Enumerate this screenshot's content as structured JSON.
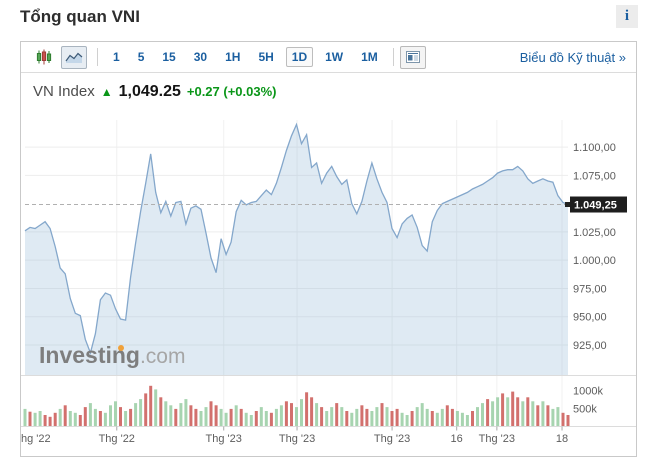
{
  "page": {
    "title": "Tổng quan VNI",
    "info_icon": "i"
  },
  "toolbar": {
    "intervals": [
      "1",
      "5",
      "15",
      "30",
      "1H",
      "5H",
      "1D",
      "1W",
      "1M"
    ],
    "selected_interval": "1D",
    "technical_link": "Biểu đồ Kỹ thuật »"
  },
  "quote": {
    "name": "VN Index",
    "arrow": "▲",
    "price": "1,049.25",
    "change": "+0.27 (+0.03%)"
  },
  "watermark": {
    "bold": "Investing",
    "light": ".com"
  },
  "colors": {
    "link_blue": "#1b5fa0",
    "up_green": "#0a9618",
    "line": "#84a7cb",
    "area_fill": "#dfeaf3",
    "volume_red": "#d2706d",
    "volume_green": "#a7d4b0",
    "badge_bg": "#1e1e1e",
    "axis_text": "#5c5c5c"
  },
  "chart_data": {
    "type": "area",
    "series_name": "VN Index",
    "current_price": 1049.25,
    "ylim": [
      898,
      1124
    ],
    "grid": true,
    "prices": [
      1026,
      1029,
      1028,
      1031,
      1034,
      1028,
      1012,
      993,
      988,
      966,
      953,
      951,
      930,
      918,
      935,
      965,
      971,
      969,
      957,
      948,
      947,
      985,
      1015,
      1043,
      1068,
      1094,
      1060,
      1042,
      1052,
      1039,
      1051,
      1052,
      1032,
      1046,
      1048,
      1045,
      1024,
      1002,
      989,
      1019,
      1005,
      1016,
      1043,
      1053,
      1049,
      1051,
      1052,
      1057,
      1062,
      1058,
      1068,
      1082,
      1097,
      1110,
      1120,
      1103,
      1111,
      1082,
      1086,
      1068,
      1077,
      1083,
      1074,
      1067,
      1071,
      1050,
      1041,
      1052,
      1070,
      1086,
      1072,
      1060,
      1051,
      1028,
      1020,
      1032,
      1037,
      1040,
      1029,
      1013,
      1008,
      1034,
      1044,
      1050,
      1052,
      1054,
      1056,
      1058,
      1060,
      1063,
      1065,
      1067,
      1070,
      1073,
      1077,
      1079,
      1080,
      1080,
      1083,
      1079,
      1072,
      1068,
      1070,
      1072,
      1070,
      1069,
      1057,
      1051,
      1049.25
    ],
    "volumes_k": [
      490,
      410,
      380,
      430,
      320,
      270,
      380,
      490,
      590,
      430,
      380,
      320,
      540,
      650,
      490,
      430,
      380,
      590,
      700,
      540,
      430,
      490,
      650,
      760,
      920,
      1130,
      1030,
      810,
      700,
      590,
      490,
      650,
      760,
      590,
      490,
      430,
      540,
      700,
      590,
      490,
      380,
      490,
      590,
      490,
      380,
      320,
      430,
      540,
      430,
      380,
      490,
      590,
      700,
      650,
      540,
      760,
      950,
      810,
      650,
      540,
      430,
      540,
      650,
      540,
      430,
      380,
      490,
      590,
      490,
      430,
      540,
      650,
      540,
      430,
      490,
      380,
      320,
      430,
      540,
      650,
      490,
      430,
      380,
      490,
      590,
      490,
      430,
      380,
      320,
      430,
      540,
      650,
      760,
      700,
      810,
      920,
      810,
      970,
      810,
      700,
      810,
      700,
      590,
      700,
      590,
      490,
      540,
      380,
      320
    ],
    "volume_colors": "grggrrrgrggrrggrgggrgrggrrgrggrggrrggrrggrgrggrggrggrrggrrgrggrgrggrrggrgrrggrgggrggrrgggrggrggrgrrgrgrgrggrr",
    "y_ticks": [
      {
        "v": 1100,
        "label": "1.100,00"
      },
      {
        "v": 1075,
        "label": "1.075,00"
      },
      {
        "v": 1025,
        "label": "1.025,00"
      },
      {
        "v": 1000,
        "label": "1.000,00"
      },
      {
        "v": 975,
        "label": "975,00"
      },
      {
        "v": 950,
        "label": "950,00"
      },
      {
        "v": 925,
        "label": "925,00"
      }
    ],
    "price_badge_label": "1.049,25",
    "volume_axis": [
      {
        "label": "1000k",
        "k": 1000
      },
      {
        "label": "500k",
        "k": 500
      }
    ],
    "x_labels": [
      {
        "f": -0.013,
        "t": "hg '22",
        "a": "start"
      },
      {
        "f": 0.169,
        "t": "Thg '22",
        "a": "middle"
      },
      {
        "f": 0.366,
        "t": "Thg '23",
        "a": "middle"
      },
      {
        "f": 0.501,
        "t": "Thg '23",
        "a": "middle"
      },
      {
        "f": 0.676,
        "t": "Thg '23",
        "a": "middle"
      },
      {
        "f": 0.795,
        "t": "16",
        "a": "middle"
      },
      {
        "f": 0.869,
        "t": "Thg '23",
        "a": "middle"
      },
      {
        "f": 0.989,
        "t": "18",
        "a": "middle"
      }
    ],
    "x_grid_f": [
      0.169,
      0.366,
      0.501,
      0.676,
      0.795,
      0.869,
      0.989
    ]
  }
}
